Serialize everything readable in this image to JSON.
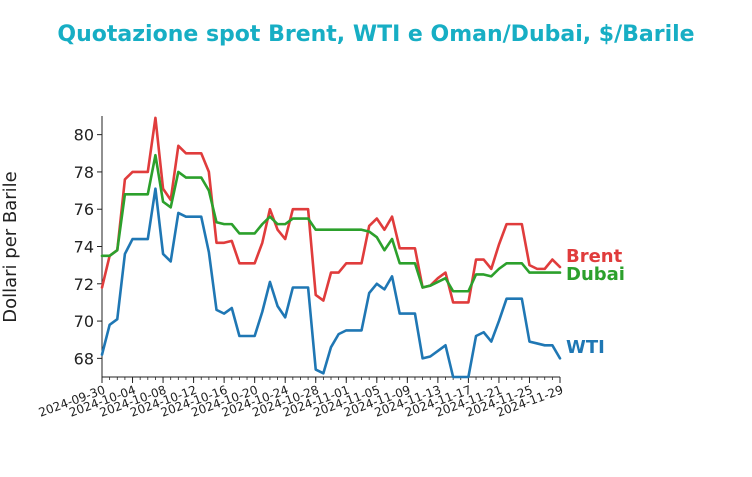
{
  "chart_data": {
    "type": "line",
    "title": "Quotazione spot Brent, WTI e Oman/Dubai, $/Barile",
    "xlabel": "",
    "ylabel": "Dollari per Barile",
    "ylim": [
      67,
      81
    ],
    "xlim": [
      "2024-09-30",
      "2024-11-29"
    ],
    "y_ticks": [
      68,
      70,
      72,
      74,
      76,
      78,
      80
    ],
    "x_ticks": [
      "2024-09-30",
      "2024-10-04",
      "2024-10-08",
      "2024-10-12",
      "2024-10-16",
      "2024-10-20",
      "2024-10-24",
      "2024-10-28",
      "2024-11-01",
      "2024-11-05",
      "2024-11-09",
      "2024-11-13",
      "2024-11-17",
      "2024-11-21",
      "2024-11-25",
      "2024-11-29"
    ],
    "grid": false,
    "legend": "labels at line ends",
    "x": [
      "2024-09-30",
      "2024-10-01",
      "2024-10-02",
      "2024-10-03",
      "2024-10-04",
      "2024-10-05",
      "2024-10-06",
      "2024-10-07",
      "2024-10-08",
      "2024-10-09",
      "2024-10-10",
      "2024-10-11",
      "2024-10-12",
      "2024-10-13",
      "2024-10-14",
      "2024-10-15",
      "2024-10-16",
      "2024-10-17",
      "2024-10-18",
      "2024-10-19",
      "2024-10-20",
      "2024-10-21",
      "2024-10-22",
      "2024-10-23",
      "2024-10-24",
      "2024-10-25",
      "2024-10-26",
      "2024-10-27",
      "2024-10-28",
      "2024-10-29",
      "2024-10-30",
      "2024-10-31",
      "2024-11-01",
      "2024-11-02",
      "2024-11-03",
      "2024-11-04",
      "2024-11-05",
      "2024-11-06",
      "2024-11-07",
      "2024-11-08",
      "2024-11-09",
      "2024-11-10",
      "2024-11-11",
      "2024-11-12",
      "2024-11-13",
      "2024-11-14",
      "2024-11-15",
      "2024-11-16",
      "2024-11-17",
      "2024-11-18",
      "2024-11-19",
      "2024-11-20",
      "2024-11-21",
      "2024-11-22",
      "2024-11-23",
      "2024-11-24",
      "2024-11-25",
      "2024-11-26",
      "2024-11-27",
      "2024-11-28",
      "2024-11-29"
    ],
    "series": [
      {
        "name": "Brent",
        "color": "#e03c3c",
        "values": [
          71.8,
          73.5,
          73.8,
          77.6,
          78.0,
          78.0,
          78.0,
          80.9,
          77.1,
          76.5,
          79.4,
          79.0,
          79.0,
          79.0,
          78.0,
          74.2,
          74.2,
          74.3,
          73.1,
          73.1,
          73.1,
          74.2,
          76.0,
          74.9,
          74.4,
          76.0,
          76.0,
          76.0,
          71.4,
          71.1,
          72.6,
          72.6,
          73.1,
          73.1,
          73.1,
          75.1,
          75.5,
          74.9,
          75.6,
          73.9,
          73.9,
          73.9,
          71.8,
          71.9,
          72.3,
          72.6,
          71.0,
          71.0,
          71.0,
          73.3,
          73.3,
          72.8,
          74.1,
          75.2,
          75.2,
          75.2,
          73.0,
          72.8,
          72.8,
          73.3,
          72.9
        ]
      },
      {
        "name": "Dubai",
        "color": "#2ca02c",
        "values": [
          73.5,
          73.5,
          73.8,
          76.8,
          76.8,
          76.8,
          76.8,
          78.9,
          76.4,
          76.1,
          78.0,
          77.7,
          77.7,
          77.7,
          77.0,
          75.3,
          75.2,
          75.2,
          74.7,
          74.7,
          74.7,
          75.2,
          75.6,
          75.2,
          75.2,
          75.5,
          75.5,
          75.5,
          74.9,
          74.9,
          74.9,
          74.9,
          74.9,
          74.9,
          74.9,
          74.8,
          74.5,
          73.8,
          74.4,
          73.1,
          73.1,
          73.1,
          71.8,
          71.9,
          72.1,
          72.3,
          71.6,
          71.6,
          71.6,
          72.5,
          72.5,
          72.4,
          72.8,
          73.1,
          73.1,
          73.1,
          72.6,
          72.6,
          72.6,
          72.6,
          72.6
        ]
      },
      {
        "name": "WTI",
        "color": "#1f77b4",
        "values": [
          68.2,
          69.8,
          70.1,
          73.6,
          74.4,
          74.4,
          74.4,
          77.1,
          73.6,
          73.2,
          75.8,
          75.6,
          75.6,
          75.6,
          73.7,
          70.6,
          70.4,
          70.7,
          69.2,
          69.2,
          69.2,
          70.5,
          72.1,
          70.8,
          70.2,
          71.8,
          71.8,
          71.8,
          67.4,
          67.2,
          68.6,
          69.3,
          69.5,
          69.5,
          69.5,
          71.5,
          72.0,
          71.7,
          72.4,
          70.4,
          70.4,
          70.4,
          68.0,
          68.1,
          68.4,
          68.7,
          67.0,
          67.0,
          67.0,
          69.2,
          69.4,
          68.9,
          70.0,
          71.2,
          71.2,
          71.2,
          68.9,
          68.8,
          68.7,
          68.7,
          68.0
        ]
      }
    ]
  }
}
